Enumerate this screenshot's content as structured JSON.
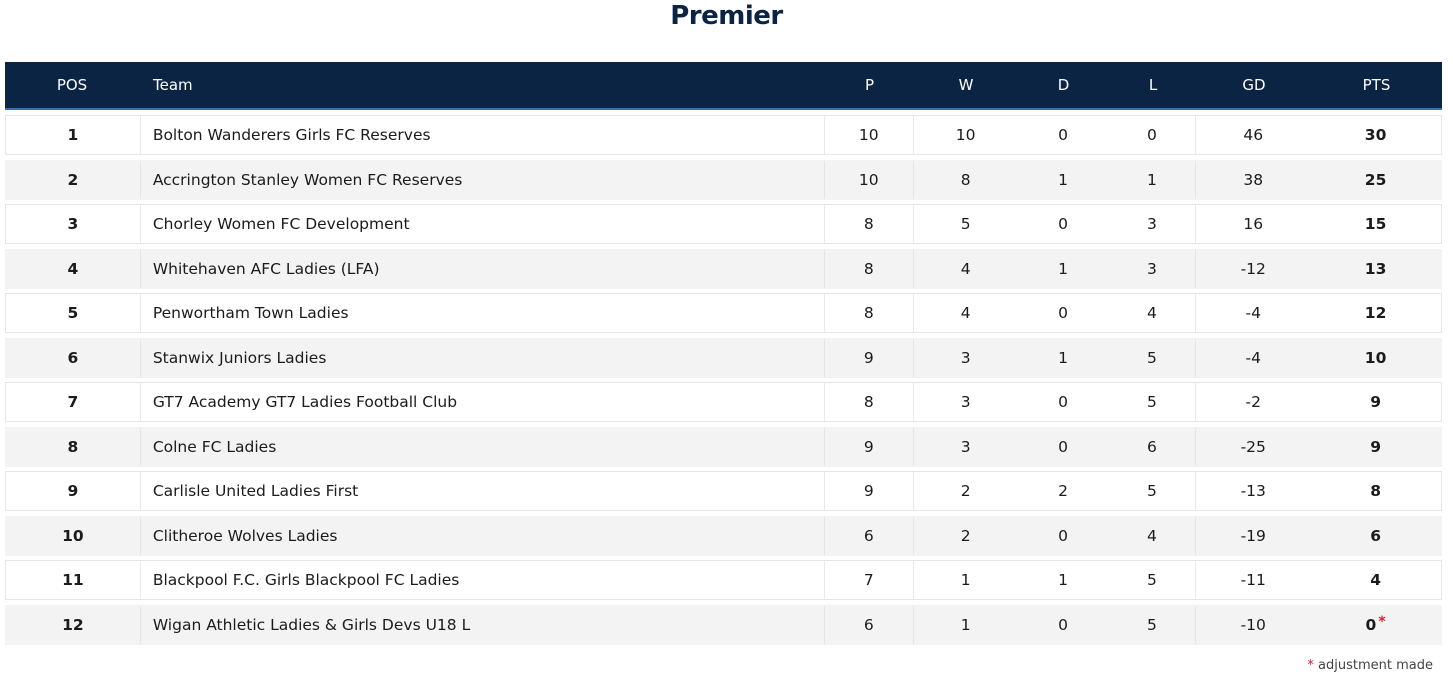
{
  "title": "Premier",
  "columns": {
    "pos": "POS",
    "team": "Team",
    "p": "P",
    "w": "W",
    "d": "D",
    "l": "L",
    "gd": "GD",
    "pts": "PTS"
  },
  "rows": [
    {
      "pos": "1",
      "team": "Bolton Wanderers Girls FC Reserves",
      "p": "10",
      "w": "10",
      "d": "0",
      "l": "0",
      "gd": "46",
      "pts": "30"
    },
    {
      "pos": "2",
      "team": "Accrington Stanley Women FC Reserves",
      "p": "10",
      "w": "8",
      "d": "1",
      "l": "1",
      "gd": "38",
      "pts": "25"
    },
    {
      "pos": "3",
      "team": "Chorley Women FC Development",
      "p": "8",
      "w": "5",
      "d": "0",
      "l": "3",
      "gd": "16",
      "pts": "15"
    },
    {
      "pos": "4",
      "team": "Whitehaven AFC Ladies (LFA)",
      "p": "8",
      "w": "4",
      "d": "1",
      "l": "3",
      "gd": "-12",
      "pts": "13"
    },
    {
      "pos": "5",
      "team": "Penwortham Town Ladies",
      "p": "8",
      "w": "4",
      "d": "0",
      "l": "4",
      "gd": "-4",
      "pts": "12"
    },
    {
      "pos": "6",
      "team": "Stanwix Juniors Ladies",
      "p": "9",
      "w": "3",
      "d": "1",
      "l": "5",
      "gd": "-4",
      "pts": "10"
    },
    {
      "pos": "7",
      "team": "GT7 Academy GT7 Ladies Football Club",
      "p": "8",
      "w": "3",
      "d": "0",
      "l": "5",
      "gd": "-2",
      "pts": "9"
    },
    {
      "pos": "8",
      "team": "Colne FC Ladies",
      "p": "9",
      "w": "3",
      "d": "0",
      "l": "6",
      "gd": "-25",
      "pts": "9"
    },
    {
      "pos": "9",
      "team": "Carlisle United Ladies First",
      "p": "9",
      "w": "2",
      "d": "2",
      "l": "5",
      "gd": "-13",
      "pts": "8"
    },
    {
      "pos": "10",
      "team": "Clitheroe Wolves Ladies",
      "p": "6",
      "w": "2",
      "d": "0",
      "l": "4",
      "gd": "-19",
      "pts": "6"
    },
    {
      "pos": "11",
      "team": "Blackpool F.C. Girls Blackpool FC Ladies",
      "p": "7",
      "w": "1",
      "d": "1",
      "l": "5",
      "gd": "-11",
      "pts": "4"
    },
    {
      "pos": "12",
      "team": "Wigan Athletic Ladies & Girls Devs U18 L",
      "p": "6",
      "w": "1",
      "d": "0",
      "l": "5",
      "gd": "-10",
      "pts": "0",
      "adjusted": "*"
    }
  ],
  "footnote": {
    "star": "*",
    "text": "adjustment made"
  },
  "colors": {
    "header_bg": "#0b2444",
    "alt_row_bg": "#f3f3f3",
    "adjustment_star": "#d01f2f"
  }
}
